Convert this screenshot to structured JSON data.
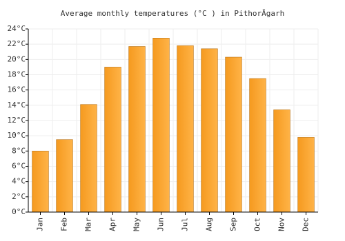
{
  "chart_data": {
    "type": "bar",
    "title": "Average monthly temperatures (°C ) in PithorĀgarh",
    "categories": [
      "Jan",
      "Feb",
      "Mar",
      "Apr",
      "May",
      "Jun",
      "Jul",
      "Aug",
      "Sep",
      "Oct",
      "Nov",
      "Dec"
    ],
    "values": [
      8.0,
      9.5,
      14.1,
      19.0,
      21.7,
      22.8,
      21.8,
      21.4,
      20.3,
      17.5,
      13.4,
      9.8
    ],
    "color": "#ffa733",
    "ylim": [
      0,
      24
    ],
    "yticks": [
      {
        "value": 0,
        "label": "0°C"
      },
      {
        "value": 2,
        "label": "2°C"
      },
      {
        "value": 4,
        "label": "4°C"
      },
      {
        "value": 6,
        "label": "6°C"
      },
      {
        "value": 8,
        "label": "8°C"
      },
      {
        "value": 10,
        "label": "10°C"
      },
      {
        "value": 12,
        "label": "12°C"
      },
      {
        "value": 14,
        "label": "14°C"
      },
      {
        "value": 16,
        "label": "16°C"
      },
      {
        "value": 18,
        "label": "18°C"
      },
      {
        "value": 20,
        "label": "20°C"
      },
      {
        "value": 22,
        "label": "22°C"
      },
      {
        "value": 24,
        "label": "24°C"
      }
    ],
    "grid": true
  }
}
